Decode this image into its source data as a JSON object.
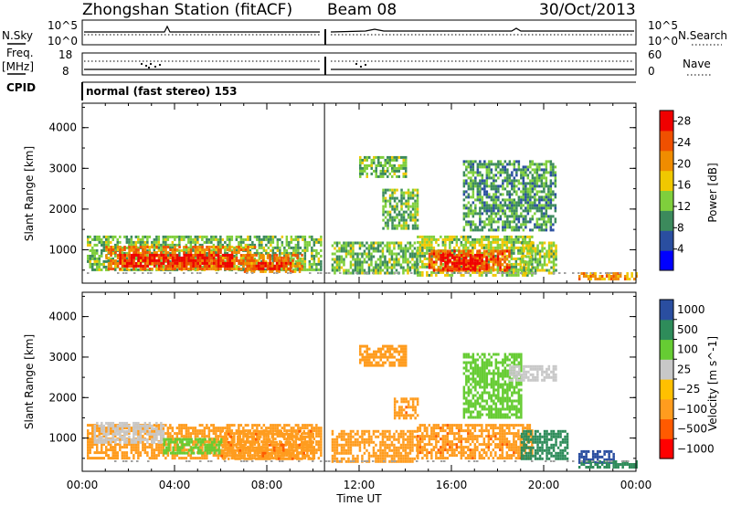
{
  "header": {
    "station": "Zhongshan Station (fitACF)",
    "beam": "Beam 08",
    "date": "30/Oct/2013"
  },
  "top_panels": {
    "nsky_label": "N.Sky",
    "nsearch_label": "N.Search",
    "nsky_ticks": [
      "10^5",
      "10^0"
    ],
    "nsearch_ticks": [
      "10^5",
      "10^0"
    ],
    "freq_label_1": "Freq.",
    "freq_label_2": "[MHz]",
    "freq_ticks": [
      "18",
      "8"
    ],
    "nave_label": "Nave",
    "nave_ticks": [
      "60",
      "0"
    ],
    "cpid_label": "CPID",
    "cpid_text": "normal (fast stereo) 153"
  },
  "colors": {
    "power_scale": [
      "#0000ff",
      "#2a4ea0",
      "#3c8a5c",
      "#7fcf3c",
      "#f0c800",
      "#f08c00",
      "#f05000",
      "#f00000"
    ],
    "velocity_scale": [
      "#ff0000",
      "#ff5a00",
      "#ff9c1e",
      "#ffc000",
      "#c8c8c8",
      "#66cc33",
      "#2e8c5a",
      "#2a4ea0"
    ],
    "ground_scatter": "#a0a0a0"
  },
  "chart_data": [
    {
      "type": "heatmap",
      "title": "",
      "xlabel": "Time UT",
      "ylabel": "Slant Range [km]",
      "xlim": [
        0,
        24
      ],
      "ylim": [
        180,
        4600
      ],
      "x_ticks": [
        "00:00",
        "04:00",
        "08:00",
        "12:00",
        "16:00",
        "20:00",
        "00:00"
      ],
      "y_ticks": [
        1000,
        2000,
        3000,
        4000
      ],
      "colorbar": {
        "label": "Power [dB]",
        "range": [
          0,
          30
        ],
        "ticks": [
          4,
          8,
          12,
          16,
          20,
          24,
          28
        ]
      },
      "regions": [
        {
          "t": [
            0.2,
            10.3
          ],
          "r": [
            500,
            1350
          ],
          "power": 12
        },
        {
          "t": [
            1.0,
            7.5
          ],
          "r": [
            500,
            1100
          ],
          "power": 22
        },
        {
          "t": [
            1.5,
            6.5
          ],
          "r": [
            600,
            900
          ],
          "power": 28
        },
        {
          "t": [
            7.0,
            9.5
          ],
          "r": [
            450,
            900
          ],
          "power": 22
        },
        {
          "t": [
            7.5,
            9.0
          ],
          "r": [
            500,
            700
          ],
          "power": 28
        },
        {
          "t": [
            10.8,
            14.5
          ],
          "r": [
            400,
            1200
          ],
          "power": 12
        },
        {
          "t": [
            12.0,
            14.0
          ],
          "r": [
            2800,
            3300
          ],
          "power": 12
        },
        {
          "t": [
            13.0,
            14.5
          ],
          "r": [
            1500,
            2500
          ],
          "power": 12
        },
        {
          "t": [
            14.5,
            19.5
          ],
          "r": [
            400,
            1350
          ],
          "power": 14
        },
        {
          "t": [
            15.0,
            18.5
          ],
          "r": [
            500,
            1000
          ],
          "power": 24
        },
        {
          "t": [
            15.5,
            17.5
          ],
          "r": [
            550,
            900
          ],
          "power": 28
        },
        {
          "t": [
            16.5,
            20.5
          ],
          "r": [
            1500,
            3200
          ],
          "power": 10
        },
        {
          "t": [
            19.0,
            20.5
          ],
          "r": [
            400,
            1200
          ],
          "power": 14
        },
        {
          "t": [
            21.5,
            24.0
          ],
          "r": [
            250,
            450
          ],
          "power": 20
        }
      ]
    },
    {
      "type": "heatmap",
      "title": "",
      "xlabel": "Time UT",
      "ylabel": "Slant Range [km]",
      "xlim": [
        0,
        24
      ],
      "ylim": [
        180,
        4600
      ],
      "x_ticks": [
        "00:00",
        "04:00",
        "08:00",
        "12:00",
        "16:00",
        "20:00",
        "00:00"
      ],
      "y_ticks": [
        1000,
        2000,
        3000,
        4000
      ],
      "colorbar": {
        "label": "Velocity [m s^-1]",
        "range": [
          -1200,
          1200
        ],
        "ticks": [
          "1000",
          "500",
          "100",
          "25",
          "−25",
          "−100",
          "−500",
          "−1000"
        ]
      },
      "regions": [
        {
          "t": [
            0.2,
            10.3
          ],
          "r": [
            500,
            1350
          ],
          "velocity": -150
        },
        {
          "t": [
            0.5,
            3.5
          ],
          "r": [
            900,
            1400
          ],
          "velocity": 0
        },
        {
          "t": [
            3.5,
            6.0
          ],
          "r": [
            600,
            1000
          ],
          "velocity": 60
        },
        {
          "t": [
            6.0,
            10.0
          ],
          "r": [
            500,
            1200
          ],
          "velocity": -400
        },
        {
          "t": [
            10.8,
            14.5
          ],
          "r": [
            400,
            1200
          ],
          "velocity": -150
        },
        {
          "t": [
            12.0,
            14.0
          ],
          "r": [
            2800,
            3300
          ],
          "velocity": -150
        },
        {
          "t": [
            13.5,
            14.5
          ],
          "r": [
            1500,
            2000
          ],
          "velocity": -400
        },
        {
          "t": [
            14.5,
            19.5
          ],
          "r": [
            500,
            1350
          ],
          "velocity": -400
        },
        {
          "t": [
            16.5,
            19.0
          ],
          "r": [
            1500,
            3100
          ],
          "velocity": 60
        },
        {
          "t": [
            18.5,
            20.5
          ],
          "r": [
            2400,
            2800
          ],
          "velocity": 0
        },
        {
          "t": [
            19.0,
            21.0
          ],
          "r": [
            500,
            1200
          ],
          "velocity": 200
        },
        {
          "t": [
            21.5,
            23.0
          ],
          "r": [
            400,
            700
          ],
          "velocity": 1000
        },
        {
          "t": [
            21.5,
            24.0
          ],
          "r": [
            250,
            450
          ],
          "velocity": 200
        }
      ]
    }
  ]
}
